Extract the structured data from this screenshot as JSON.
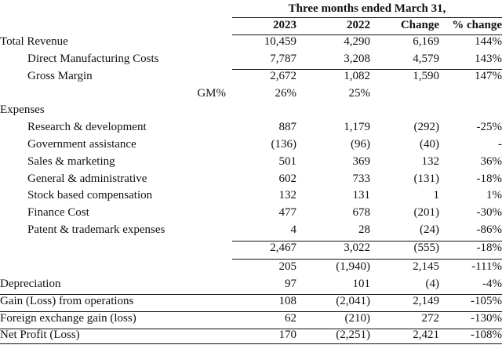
{
  "header": {
    "period": "Three months ended March 31,",
    "columns": [
      "2023",
      "2022",
      "Change",
      "% change"
    ]
  },
  "rows": [
    {
      "label": "Total Revenue",
      "values": [
        "10,459",
        "4,290",
        "6,169",
        "144%"
      ]
    },
    {
      "label": "Direct Manufacturing Costs",
      "values": [
        "7,787",
        "3,208",
        "4,579",
        "143%"
      ]
    },
    {
      "label": "Gross Margin",
      "values": [
        "2,672",
        "1,082",
        "1,590",
        "147%"
      ]
    },
    {
      "label": "GM%",
      "values": [
        "26%",
        "25%",
        "",
        ""
      ]
    },
    {
      "label": "Expenses",
      "values": [
        "",
        "",
        "",
        ""
      ]
    },
    {
      "label": "Research & development",
      "values": [
        "887",
        "1,179",
        "(292)",
        "-25%"
      ]
    },
    {
      "label": "Government assistance",
      "values": [
        "(136)",
        "(96)",
        "(40)",
        "-"
      ]
    },
    {
      "label": "Sales & marketing",
      "values": [
        "501",
        "369",
        "132",
        "36%"
      ]
    },
    {
      "label": "General & administrative",
      "values": [
        "602",
        "733",
        "(131)",
        "-18%"
      ]
    },
    {
      "label": "Stock based compensation",
      "values": [
        "132",
        "131",
        "1",
        "1%"
      ]
    },
    {
      "label": "Finance Cost",
      "values": [
        "477",
        "678",
        "(201)",
        "-30%"
      ]
    },
    {
      "label": "Patent & trademark expenses",
      "values": [
        "4",
        "28",
        "(24)",
        "-86%"
      ]
    },
    {
      "label": "",
      "values": [
        "2,467",
        "3,022",
        "(555)",
        "-18%"
      ]
    },
    {
      "label": "",
      "values": [
        "205",
        "(1,940)",
        "2,145",
        "-111%"
      ]
    },
    {
      "label": "Depreciation",
      "values": [
        "97",
        "101",
        "(4)",
        "-4%"
      ]
    },
    {
      "label": "Gain (Loss) from operations",
      "values": [
        "108",
        "(2,041)",
        "2,149",
        "-105%"
      ]
    },
    {
      "label": "Foreign exchange gain (loss)",
      "values": [
        "62",
        "(210)",
        "272",
        "-130%"
      ]
    },
    {
      "label": "Net Profit (Loss)",
      "values": [
        "170",
        "(2,251)",
        "2,421",
        "-108%"
      ]
    }
  ]
}
